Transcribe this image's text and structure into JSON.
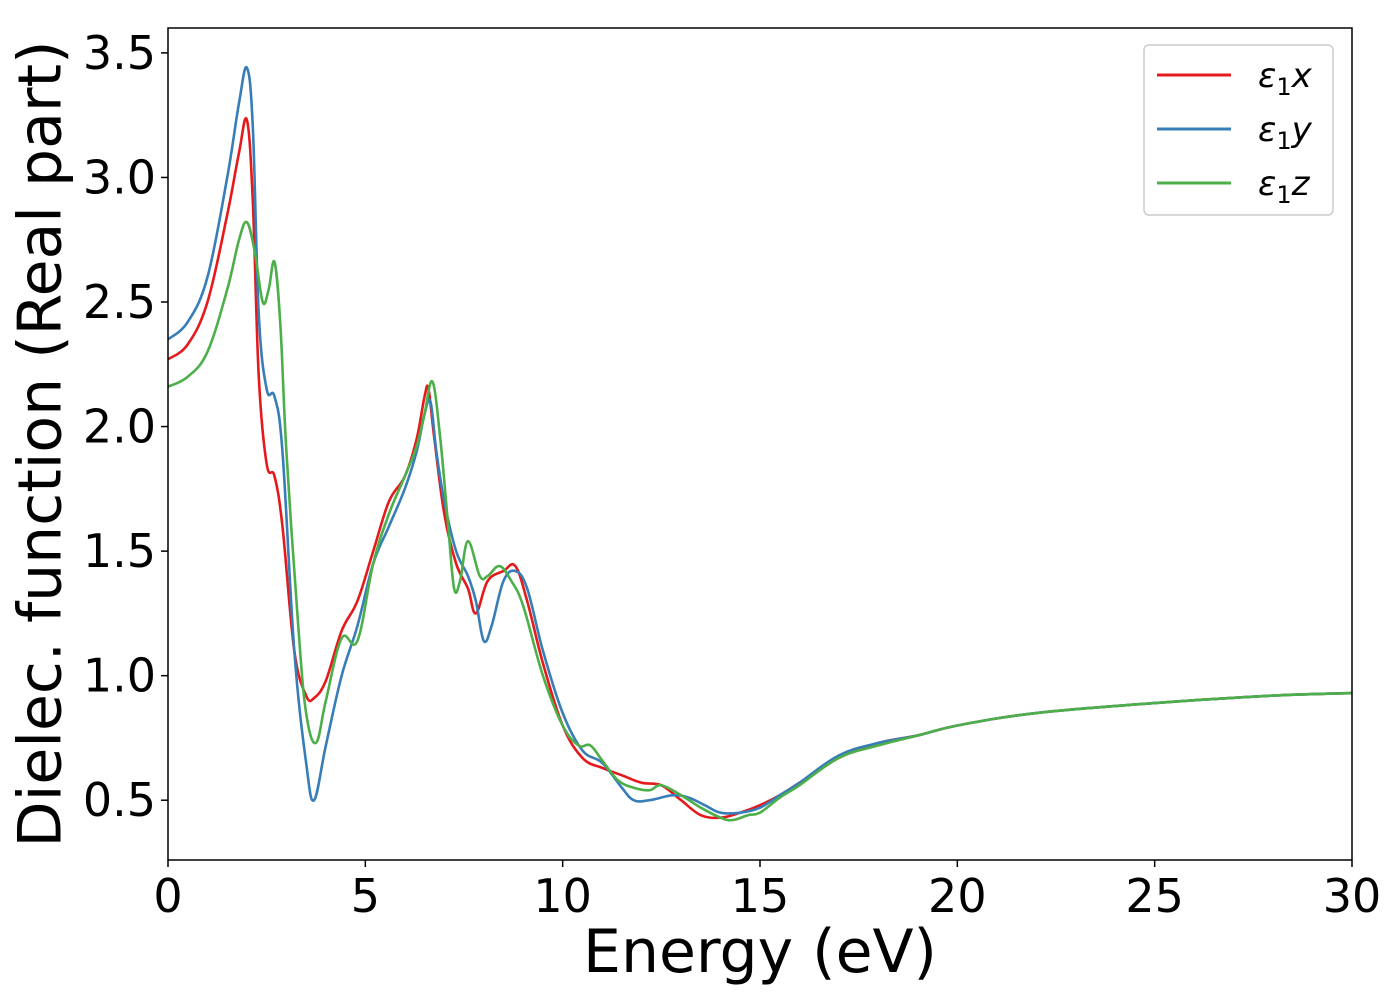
{
  "chart_data": {
    "type": "line",
    "xlabel": "Energy (eV)",
    "ylabel": "Dielec. function (Real part)",
    "xlim": [
      0,
      30
    ],
    "ylim": [
      0.26,
      3.6
    ],
    "xticks": [
      0,
      5,
      10,
      15,
      20,
      25,
      30
    ],
    "xtick_labels": [
      "0",
      "5",
      "10",
      "15",
      "20",
      "25",
      "30"
    ],
    "yticks": [
      0.5,
      1.0,
      1.5,
      2.0,
      2.5,
      3.0,
      3.5
    ],
    "ytick_labels": [
      "0.5",
      "1.0",
      "1.5",
      "2.0",
      "2.5",
      "3.0",
      "3.5"
    ],
    "grid": false,
    "legend_position": "top-right",
    "series": [
      {
        "name": "ε1x",
        "label_main": "ε",
        "label_sub": "1",
        "label_tail": "x",
        "color": "#e41a1c",
        "x": [
          0,
          0.5,
          1.0,
          1.5,
          1.8,
          2.0,
          2.15,
          2.3,
          2.5,
          2.7,
          2.9,
          3.2,
          3.5,
          3.7,
          4.0,
          4.4,
          4.8,
          5.2,
          5.6,
          6.0,
          6.3,
          6.5,
          6.6,
          6.75,
          7.0,
          7.3,
          7.6,
          7.8,
          8.1,
          8.5,
          8.8,
          9.1,
          9.5,
          10.0,
          10.5,
          11.0,
          11.5,
          12.0,
          12.5,
          13.0,
          13.5,
          14.0,
          14.5,
          15.0,
          15.5,
          16.0,
          17.0,
          18.0,
          19.0,
          20.0,
          22.0,
          25.0,
          28.0,
          30.0
        ],
        "y": [
          2.27,
          2.33,
          2.5,
          2.85,
          3.1,
          3.23,
          2.9,
          2.2,
          1.85,
          1.8,
          1.6,
          1.1,
          0.92,
          0.91,
          0.98,
          1.18,
          1.3,
          1.5,
          1.7,
          1.8,
          1.95,
          2.12,
          2.15,
          1.95,
          1.65,
          1.45,
          1.35,
          1.25,
          1.38,
          1.42,
          1.44,
          1.3,
          1.05,
          0.8,
          0.67,
          0.63,
          0.6,
          0.57,
          0.56,
          0.5,
          0.44,
          0.43,
          0.45,
          0.48,
          0.52,
          0.57,
          0.67,
          0.73,
          0.76,
          0.8,
          0.85,
          0.89,
          0.92,
          0.93
        ]
      },
      {
        "name": "ε1y",
        "label_main": "ε",
        "label_sub": "1",
        "label_tail": "y",
        "color": "#377eb8",
        "x": [
          0,
          0.5,
          1.0,
          1.5,
          1.8,
          2.0,
          2.15,
          2.3,
          2.5,
          2.7,
          2.9,
          3.2,
          3.5,
          3.7,
          4.0,
          4.4,
          4.8,
          5.2,
          5.6,
          6.0,
          6.3,
          6.5,
          6.65,
          6.8,
          7.0,
          7.3,
          7.6,
          7.8,
          8.0,
          8.2,
          8.5,
          8.8,
          9.1,
          9.5,
          10.0,
          10.5,
          11.0,
          11.5,
          11.8,
          12.2,
          12.8,
          13.2,
          13.6,
          14.0,
          14.5,
          15.0,
          15.5,
          16.0,
          17.0,
          18.0,
          19.0,
          20.0,
          22.0,
          25.0,
          28.0,
          30.0
        ],
        "y": [
          2.35,
          2.42,
          2.6,
          3.0,
          3.3,
          3.44,
          3.2,
          2.45,
          2.15,
          2.12,
          1.9,
          1.1,
          0.65,
          0.5,
          0.72,
          1.0,
          1.2,
          1.45,
          1.6,
          1.75,
          1.9,
          2.05,
          2.1,
          1.9,
          1.7,
          1.5,
          1.4,
          1.3,
          1.14,
          1.2,
          1.38,
          1.42,
          1.35,
          1.1,
          0.85,
          0.7,
          0.65,
          0.55,
          0.5,
          0.5,
          0.52,
          0.51,
          0.48,
          0.45,
          0.45,
          0.47,
          0.52,
          0.57,
          0.68,
          0.73,
          0.76,
          0.8,
          0.85,
          0.89,
          0.92,
          0.93
        ]
      },
      {
        "name": "ε1z",
        "label_main": "ε",
        "label_sub": "1",
        "label_tail": "z",
        "color": "#4daf4a",
        "x": [
          0,
          0.5,
          1.0,
          1.5,
          1.8,
          2.0,
          2.2,
          2.4,
          2.55,
          2.7,
          2.85,
          3.0,
          3.3,
          3.5,
          3.75,
          4.0,
          4.4,
          4.8,
          5.2,
          5.6,
          6.0,
          6.3,
          6.5,
          6.7,
          6.9,
          7.1,
          7.25,
          7.4,
          7.6,
          7.9,
          8.1,
          8.4,
          8.7,
          9.0,
          9.5,
          10.0,
          10.4,
          10.7,
          11.0,
          11.4,
          11.8,
          12.2,
          12.5,
          13.0,
          13.5,
          14.0,
          14.3,
          14.7,
          15.0,
          15.5,
          16.0,
          17.0,
          18.0,
          19.0,
          20.0,
          22.0,
          25.0,
          28.0,
          30.0
        ],
        "y": [
          2.16,
          2.2,
          2.3,
          2.55,
          2.75,
          2.82,
          2.7,
          2.5,
          2.55,
          2.66,
          2.4,
          1.9,
          1.2,
          0.85,
          0.73,
          0.9,
          1.15,
          1.14,
          1.45,
          1.65,
          1.8,
          1.92,
          2.05,
          2.18,
          1.95,
          1.6,
          1.35,
          1.38,
          1.54,
          1.4,
          1.4,
          1.44,
          1.38,
          1.28,
          1.0,
          0.8,
          0.72,
          0.72,
          0.66,
          0.58,
          0.55,
          0.54,
          0.56,
          0.52,
          0.47,
          0.43,
          0.42,
          0.44,
          0.45,
          0.51,
          0.56,
          0.67,
          0.72,
          0.76,
          0.8,
          0.85,
          0.89,
          0.92,
          0.93
        ]
      }
    ]
  }
}
